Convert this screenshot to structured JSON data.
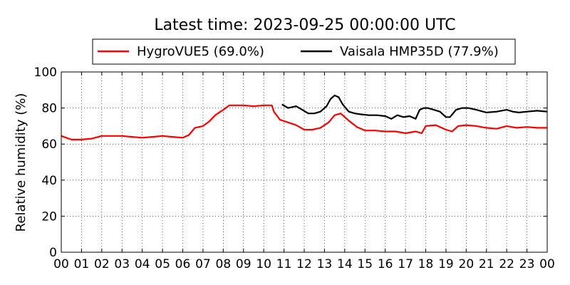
{
  "chart_data": {
    "type": "line",
    "title": "Latest time: 2023-09-25 00:00:00 UTC",
    "xlabel": "",
    "ylabel": "Relative humidity (%)",
    "xlim": [
      0,
      24
    ],
    "ylim": [
      0,
      100
    ],
    "grid": true,
    "legend_position": "top-center",
    "x_ticks": [
      0,
      1,
      2,
      3,
      4,
      5,
      6,
      7,
      8,
      9,
      10,
      11,
      12,
      13,
      14,
      15,
      16,
      17,
      18,
      19,
      20,
      21,
      22,
      23,
      24
    ],
    "x_tick_labels": [
      "00",
      "01",
      "02",
      "03",
      "04",
      "05",
      "06",
      "07",
      "08",
      "09",
      "10",
      "11",
      "12",
      "13",
      "14",
      "15",
      "16",
      "17",
      "18",
      "19",
      "20",
      "21",
      "22",
      "23",
      "00"
    ],
    "y_ticks": [
      0,
      20,
      40,
      60,
      80,
      100
    ],
    "y_tick_labels": [
      "0",
      "20",
      "40",
      "60",
      "80",
      "100"
    ],
    "series": [
      {
        "name": "HygroVUE5 (69.0%)",
        "color": "#ff0000",
        "x": [
          0,
          0.5,
          1,
          1.5,
          2,
          2.5,
          3,
          3.5,
          4,
          4.5,
          5,
          5.5,
          6,
          6.3,
          6.6,
          7,
          7.3,
          7.6,
          8,
          8.3,
          8.6,
          9,
          9.5,
          10,
          10.4,
          10.5,
          10.8,
          11.2,
          11.6,
          12,
          12.4,
          12.8,
          13.2,
          13.5,
          13.8,
          14.2,
          14.6,
          15,
          15.5,
          16,
          16.5,
          17,
          17.5,
          17.8,
          18,
          18.5,
          19,
          19.3,
          19.6,
          20,
          20.5,
          21,
          21.5,
          22,
          22.5,
          23,
          23.5,
          24
        ],
        "values": [
          64.5,
          62.5,
          62.5,
          63,
          64.5,
          64.5,
          64.5,
          64,
          63.5,
          64,
          64.5,
          64,
          63.5,
          65,
          69,
          70,
          72.5,
          76,
          79,
          81.5,
          81.5,
          81.5,
          81,
          81.5,
          81.5,
          78,
          73.5,
          72,
          70.5,
          68,
          68,
          69,
          72,
          76,
          77,
          73,
          69.5,
          67.5,
          67.5,
          67,
          67,
          66,
          67,
          66,
          70,
          70.5,
          68,
          67,
          70,
          70.5,
          70,
          69,
          68.5,
          70,
          69,
          69.5,
          69,
          69
        ]
      },
      {
        "name": "Vaisala HMP35D (77.9%)",
        "color": "#000000",
        "x": [
          10.9,
          11.2,
          11.6,
          11.9,
          12.2,
          12.5,
          12.8,
          13.1,
          13.3,
          13.5,
          13.7,
          13.9,
          14.2,
          14.5,
          14.8,
          15.2,
          15.6,
          16,
          16.3,
          16.6,
          16.9,
          17.2,
          17.5,
          17.7,
          17.9,
          18.1,
          18.4,
          18.7,
          19,
          19.2,
          19.5,
          19.8,
          20.1,
          20.5,
          21,
          21.5,
          22,
          22.3,
          22.6,
          23,
          23.5,
          24
        ],
        "values": [
          82,
          80,
          81,
          79,
          77,
          77,
          78,
          81,
          85,
          87,
          86,
          82,
          78,
          77,
          76.5,
          76,
          76,
          75.5,
          74,
          76,
          75,
          75.5,
          74,
          79,
          80,
          80,
          79,
          78,
          75,
          75,
          79,
          80,
          80,
          79,
          77.5,
          78,
          79,
          78,
          77.5,
          78,
          78.5,
          78
        ]
      }
    ]
  }
}
